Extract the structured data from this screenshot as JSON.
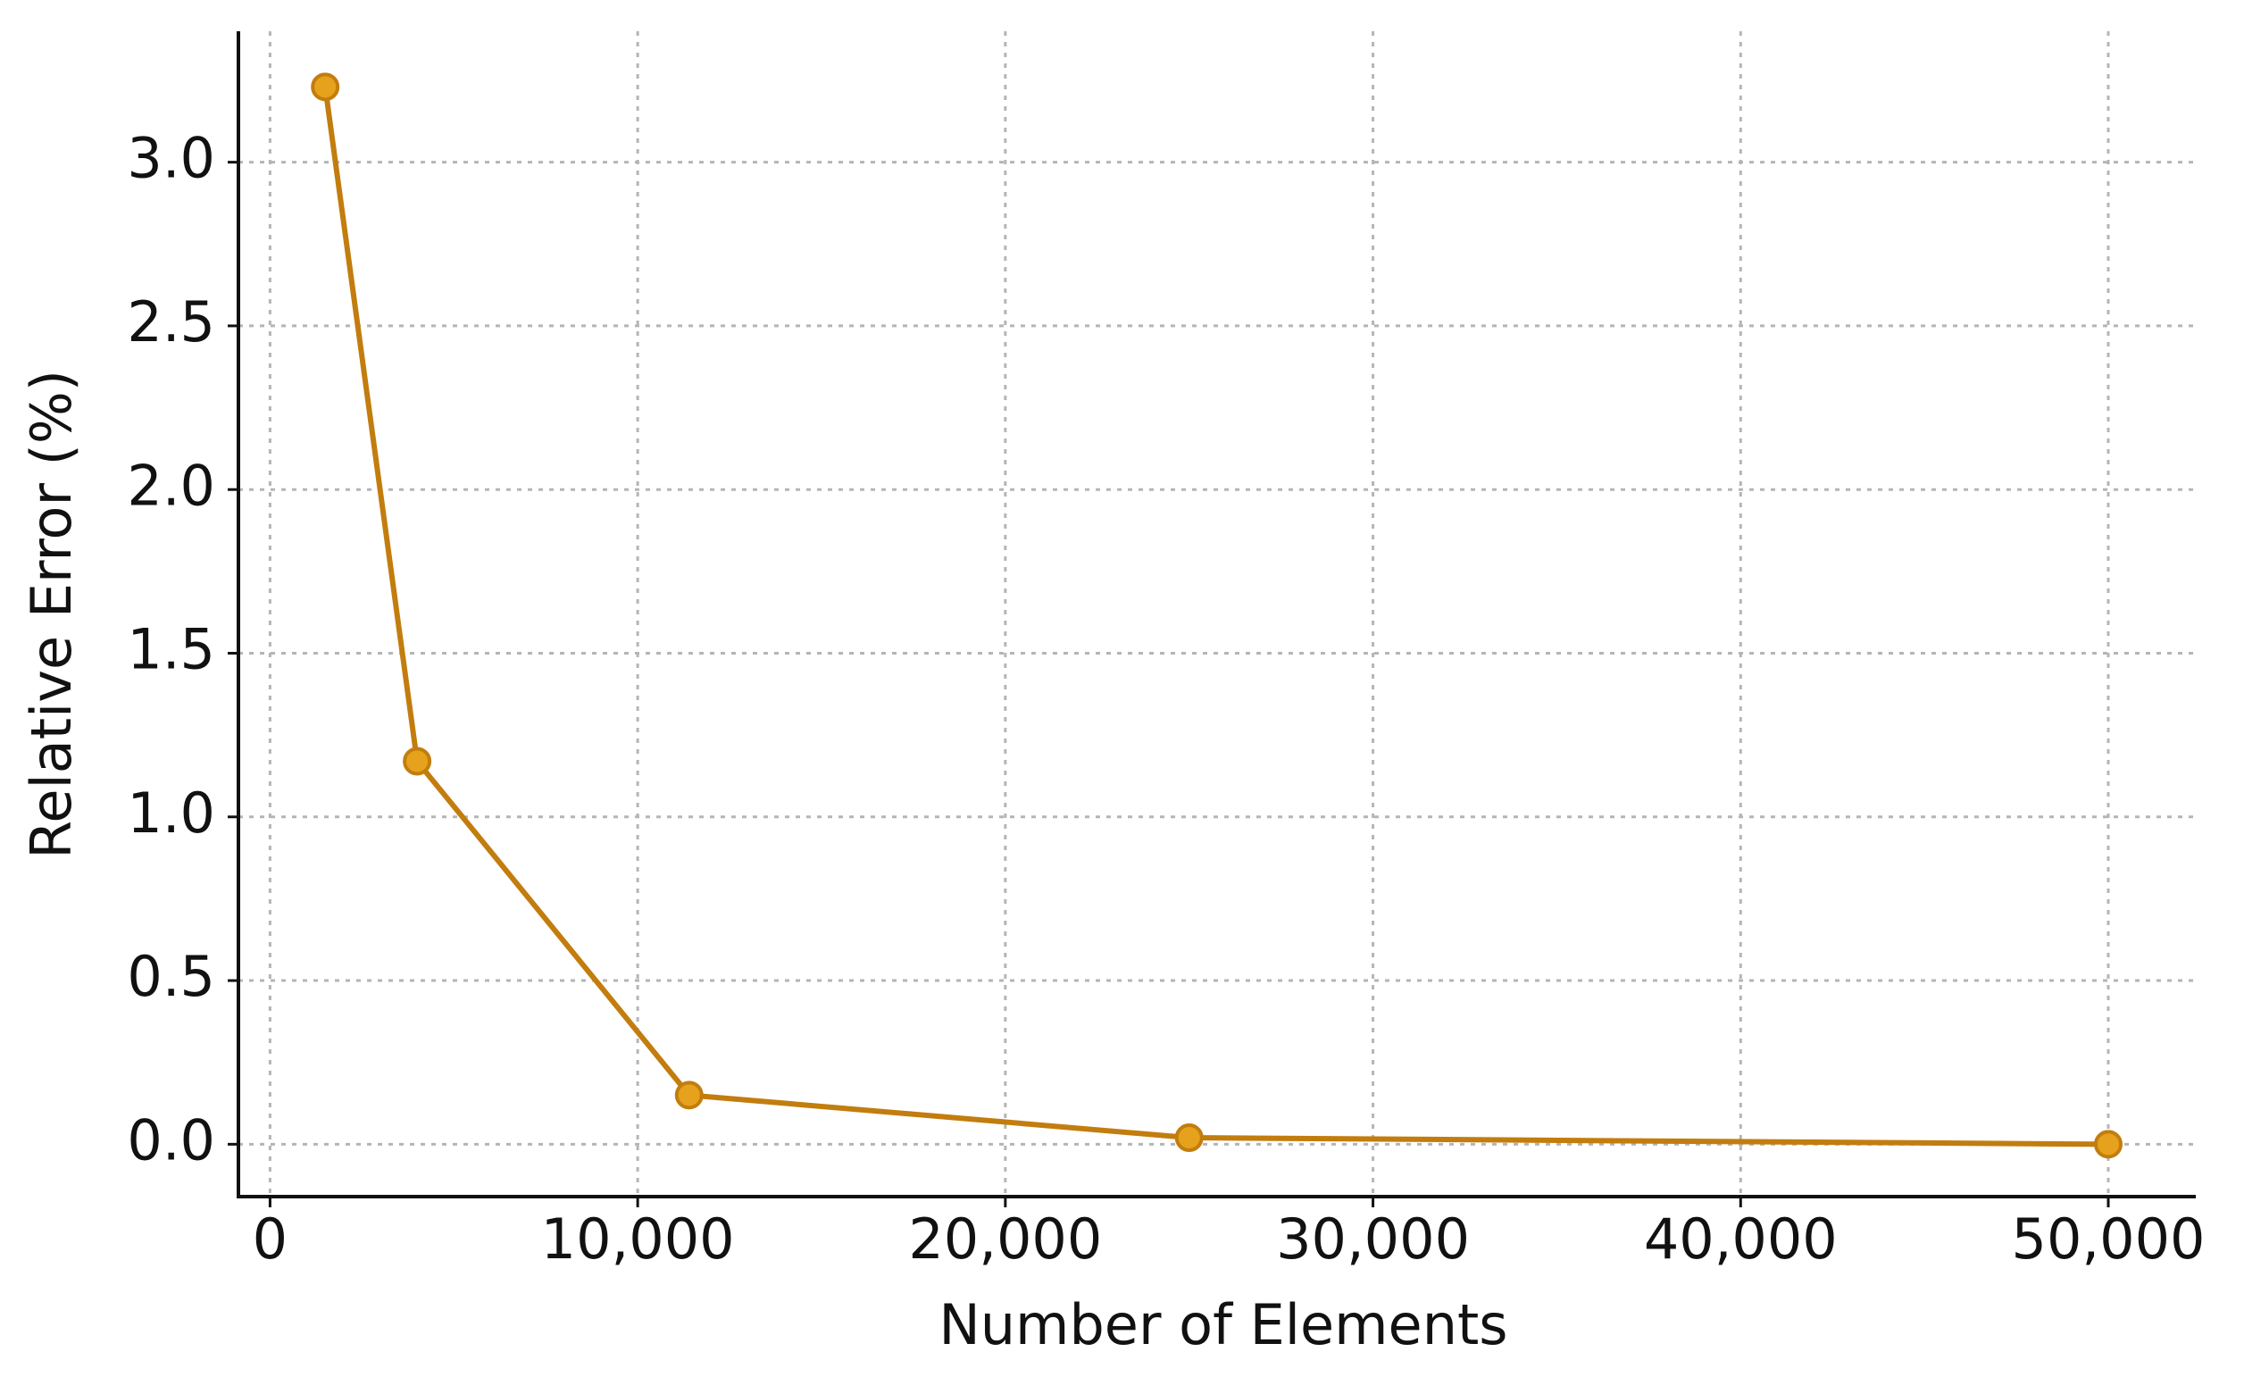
{
  "chart_data": {
    "type": "line",
    "x_label": "Number of Elements",
    "y_label": "Relative Error (%)",
    "x": [
      1500,
      4000,
      11400,
      25000,
      50000
    ],
    "series": [
      {
        "name": "Relative Error",
        "color": "#c27d0e",
        "marker_color": "#e6a21c",
        "values": [
          3.23,
          1.17,
          0.15,
          0.02,
          0.0
        ]
      }
    ],
    "xlim": [
      -860,
      52380
    ],
    "ylim": [
      -0.16,
      3.4
    ],
    "xticks": [
      0,
      {
        "value": 10000,
        "label": "10,000"
      },
      {
        "value": 20000,
        "label": "20,000"
      },
      {
        "value": 30000,
        "label": "30,000"
      },
      {
        "value": 40000,
        "label": "40,000"
      },
      {
        "value": 50000,
        "label": "50,000"
      }
    ],
    "yticks": [
      {
        "value": 0,
        "label": "0.0"
      },
      0.5,
      {
        "value": 1,
        "label": "1.0"
      },
      1.5,
      {
        "value": 2,
        "label": "2.0"
      },
      2.5,
      {
        "value": 3,
        "label": "3.0"
      }
    ],
    "grid": true
  }
}
